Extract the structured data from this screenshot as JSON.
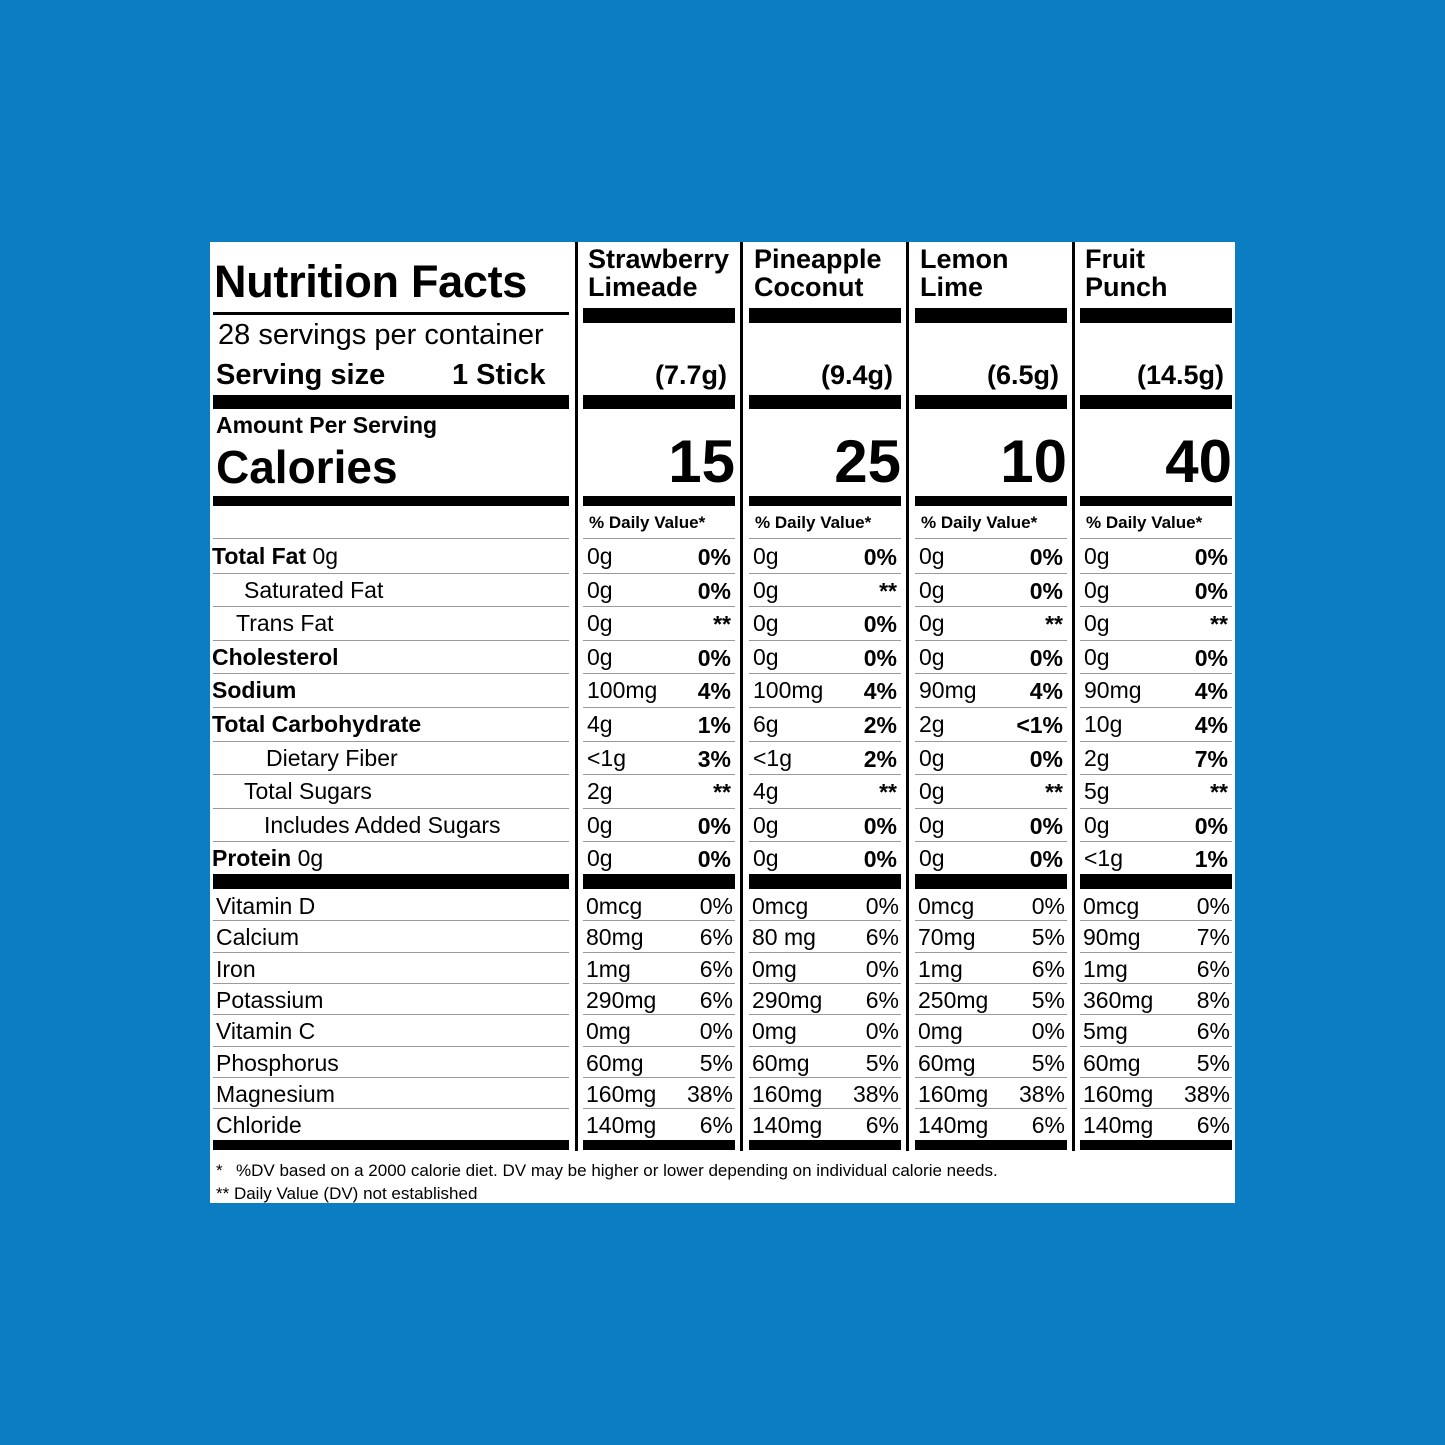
{
  "title": "Nutrition Facts",
  "servings_per_container": "28 servings per container",
  "serving_size_label": "Serving size",
  "serving_size_value": "1 Stick",
  "amount_per_serving": "Amount Per Serving",
  "calories_label": "Calories",
  "daily_value_header": "% Daily Value*",
  "nutrients": [
    {
      "label": "Total Fat",
      "suffix": " 0g",
      "bold": true,
      "indent": 0
    },
    {
      "label": "Saturated Fat",
      "suffix": "",
      "bold": false,
      "indent": 1
    },
    {
      "label": "Trans Fat",
      "suffix": "",
      "bold": false,
      "indent": 2
    },
    {
      "label": "Cholesterol",
      "suffix": "",
      "bold": true,
      "indent": 0
    },
    {
      "label": "Sodium",
      "suffix": "",
      "bold": true,
      "indent": 0
    },
    {
      "label": "Total Carbohydrate",
      "suffix": "",
      "bold": true,
      "indent": 0
    },
    {
      "label": "Dietary Fiber",
      "suffix": "",
      "bold": false,
      "indent": 3
    },
    {
      "label": "Total Sugars",
      "suffix": "",
      "bold": false,
      "indent": 1
    },
    {
      "label": "Includes Added Sugars",
      "suffix": "",
      "bold": false,
      "indent": 4
    },
    {
      "label": "Protein",
      "suffix": " 0g",
      "bold": true,
      "indent": 0
    }
  ],
  "vitamins": [
    "Vitamin D",
    "Calcium",
    "Iron",
    "Potassium",
    "Vitamin C",
    "Phosphorus",
    "Magnesium",
    "Chloride"
  ],
  "flavors": [
    {
      "name": "Strawberry\nLimeade",
      "serving_weight": "(7.7g)",
      "calories": "15",
      "nutrients": [
        [
          "0g",
          "0%"
        ],
        [
          "0g",
          "0%"
        ],
        [
          "0g",
          "**"
        ],
        [
          "0g",
          "0%"
        ],
        [
          "100mg",
          "4%"
        ],
        [
          "4g",
          "1%"
        ],
        [
          "<1g",
          "3%"
        ],
        [
          "2g",
          "**"
        ],
        [
          "0g",
          "0%"
        ],
        [
          "0g",
          "0%"
        ]
      ],
      "vitamins": [
        [
          "0mcg",
          "0%"
        ],
        [
          "80mg",
          "6%"
        ],
        [
          "1mg",
          "6%"
        ],
        [
          "290mg",
          "6%"
        ],
        [
          "0mg",
          "0%"
        ],
        [
          "60mg",
          "5%"
        ],
        [
          "160mg",
          "38%"
        ],
        [
          "140mg",
          "6%"
        ]
      ]
    },
    {
      "name": "Pineapple\nCoconut",
      "serving_weight": "(9.4g)",
      "calories": "25",
      "nutrients": [
        [
          "0g",
          "0%"
        ],
        [
          "0g",
          "**"
        ],
        [
          "0g",
          "0%"
        ],
        [
          "0g",
          "0%"
        ],
        [
          "100mg",
          "4%"
        ],
        [
          "6g",
          "2%"
        ],
        [
          "<1g",
          "2%"
        ],
        [
          "4g",
          "**"
        ],
        [
          "0g",
          "0%"
        ],
        [
          "0g",
          "0%"
        ]
      ],
      "vitamins": [
        [
          "0mcg",
          "0%"
        ],
        [
          "80 mg",
          "6%"
        ],
        [
          "0mg",
          "0%"
        ],
        [
          "290mg",
          "6%"
        ],
        [
          "0mg",
          "0%"
        ],
        [
          "60mg",
          "5%"
        ],
        [
          "160mg",
          "38%"
        ],
        [
          "140mg",
          "6%"
        ]
      ]
    },
    {
      "name": "Lemon\nLime",
      "serving_weight": "(6.5g)",
      "calories": "10",
      "nutrients": [
        [
          "0g",
          "0%"
        ],
        [
          "0g",
          "0%"
        ],
        [
          "0g",
          "**"
        ],
        [
          "0g",
          "0%"
        ],
        [
          "90mg",
          "4%"
        ],
        [
          "2g",
          "<1%"
        ],
        [
          "0g",
          "0%"
        ],
        [
          "0g",
          "**"
        ],
        [
          "0g",
          "0%"
        ],
        [
          "0g",
          "0%"
        ]
      ],
      "vitamins": [
        [
          "0mcg",
          "0%"
        ],
        [
          "70mg",
          "5%"
        ],
        [
          "1mg",
          "6%"
        ],
        [
          "250mg",
          "5%"
        ],
        [
          "0mg",
          "0%"
        ],
        [
          "60mg",
          "5%"
        ],
        [
          "160mg",
          "38%"
        ],
        [
          "140mg",
          "6%"
        ]
      ]
    },
    {
      "name": "Fruit\nPunch",
      "serving_weight": "(14.5g)",
      "calories": "40",
      "nutrients": [
        [
          "0g",
          "0%"
        ],
        [
          "0g",
          "0%"
        ],
        [
          "0g",
          "**"
        ],
        [
          "0g",
          "0%"
        ],
        [
          "90mg",
          "4%"
        ],
        [
          "10g",
          "4%"
        ],
        [
          "2g",
          "7%"
        ],
        [
          "5g",
          "**"
        ],
        [
          "0g",
          "0%"
        ],
        [
          "<1g",
          "1%"
        ]
      ],
      "vitamins": [
        [
          "0mcg",
          "0%"
        ],
        [
          "90mg",
          "7%"
        ],
        [
          "1mg",
          "6%"
        ],
        [
          "360mg",
          "8%"
        ],
        [
          "5mg",
          "6%"
        ],
        [
          "60mg",
          "5%"
        ],
        [
          "160mg",
          "38%"
        ],
        [
          "140mg",
          "6%"
        ]
      ]
    }
  ],
  "footnote_1_mark": "*",
  "footnote_1": "%DV based on a 2000 calorie diet. DV may be higher or lower depending on individual calorie needs.",
  "footnote_2": "** Daily Value (DV) not established",
  "colors": {
    "background": "#0b7dc2",
    "label": "#ffffff",
    "ink": "#000000"
  }
}
